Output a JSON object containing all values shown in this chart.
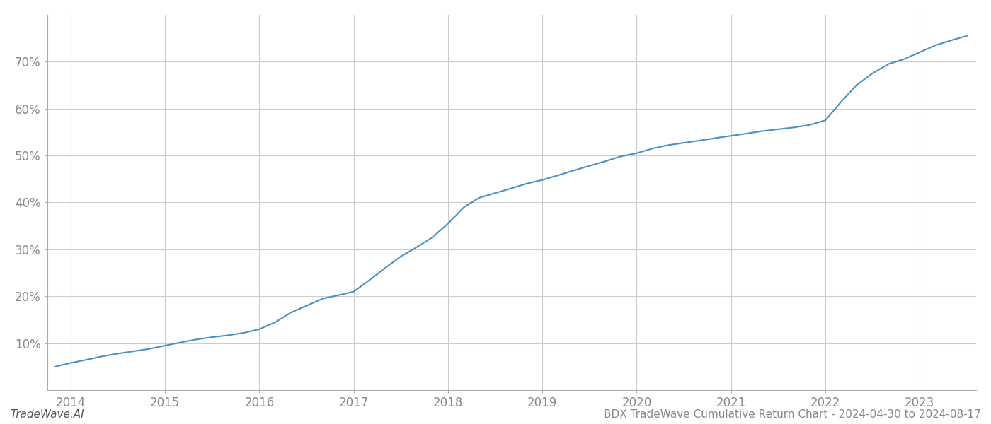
{
  "title": "BDX TradeWave Cumulative Return Chart - 2024-04-30 to 2024-08-17",
  "watermark": "TradeWave.AI",
  "line_color": "#4a90c4",
  "background_color": "#ffffff",
  "grid_color": "#cccccc",
  "x_years": [
    2014,
    2015,
    2016,
    2017,
    2018,
    2019,
    2020,
    2021,
    2022,
    2023
  ],
  "data_x": [
    2013.83,
    2014.0,
    2014.17,
    2014.33,
    2014.5,
    2014.67,
    2014.83,
    2015.0,
    2015.17,
    2015.33,
    2015.5,
    2015.67,
    2015.83,
    2016.0,
    2016.17,
    2016.33,
    2016.5,
    2016.67,
    2016.83,
    2017.0,
    2017.17,
    2017.33,
    2017.5,
    2017.67,
    2017.83,
    2018.0,
    2018.17,
    2018.33,
    2018.5,
    2018.67,
    2018.83,
    2019.0,
    2019.17,
    2019.33,
    2019.5,
    2019.67,
    2019.83,
    2020.0,
    2020.17,
    2020.33,
    2020.5,
    2020.67,
    2020.83,
    2021.0,
    2021.17,
    2021.33,
    2021.5,
    2021.67,
    2021.83,
    2022.0,
    2022.17,
    2022.33,
    2022.5,
    2022.67,
    2022.83,
    2023.0,
    2023.17,
    2023.33,
    2023.5
  ],
  "data_y": [
    5.0,
    5.8,
    6.5,
    7.2,
    7.8,
    8.3,
    8.8,
    9.5,
    10.2,
    10.8,
    11.3,
    11.7,
    12.2,
    13.0,
    14.5,
    16.5,
    18.0,
    19.5,
    20.2,
    21.0,
    23.5,
    26.0,
    28.5,
    30.5,
    32.5,
    35.5,
    39.0,
    41.0,
    42.0,
    43.0,
    44.0,
    44.8,
    45.8,
    46.8,
    47.8,
    48.8,
    49.8,
    50.5,
    51.5,
    52.2,
    52.7,
    53.2,
    53.7,
    54.2,
    54.7,
    55.2,
    55.6,
    56.0,
    56.5,
    57.5,
    61.5,
    65.0,
    67.5,
    69.5,
    70.5,
    72.0,
    73.5,
    74.5,
    75.5
  ],
  "ylim": [
    0,
    80
  ],
  "yticks": [
    10,
    20,
    30,
    40,
    50,
    60,
    70
  ],
  "xlim": [
    2013.75,
    2023.6
  ],
  "title_fontsize": 11,
  "tick_fontsize": 12,
  "watermark_fontsize": 11
}
